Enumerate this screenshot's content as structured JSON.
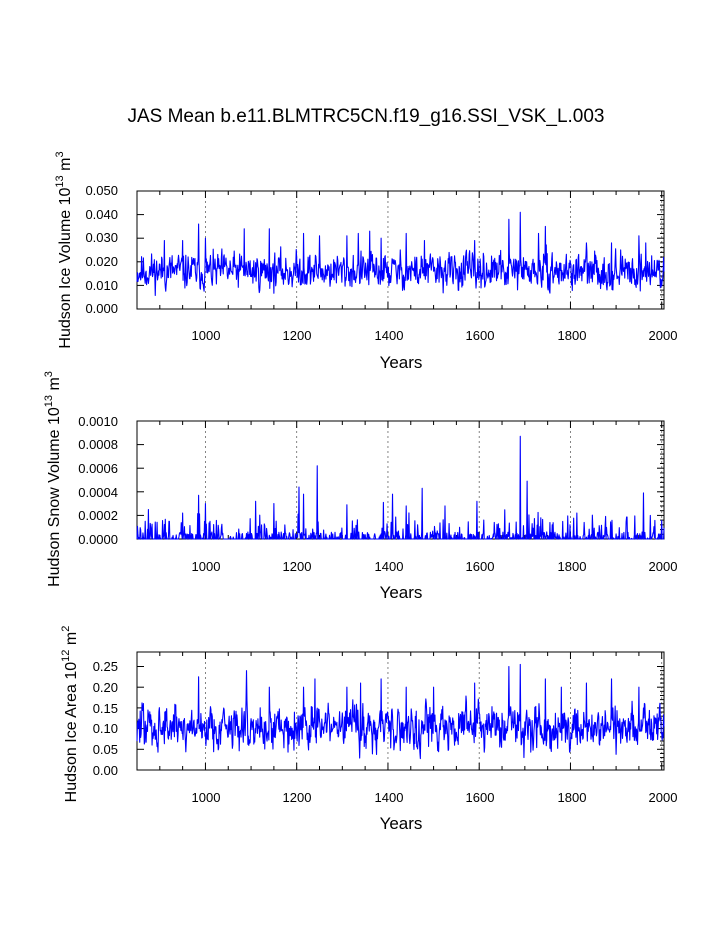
{
  "figure": {
    "title": "JAS Mean b.e11.BLMTRC5CN.f19_g16.SSI_VSK_L.003"
  },
  "chart_data": [
    {
      "type": "line",
      "title": "JAS Mean b.e11.BLMTRC5CN.f19_g16.SSI_VSK_L.003",
      "xlabel": "Years",
      "ylabel_parts": [
        "Hudson Ice Volume 10",
        "13",
        " m",
        "3"
      ],
      "xlim": [
        850,
        2005
      ],
      "ylim": [
        0,
        0.05
      ],
      "xticks": [
        1000,
        1200,
        1400,
        1600,
        1800,
        2000
      ],
      "xtick_labels": [
        "1000",
        "1200",
        "1400",
        "1600",
        "1800",
        "2000"
      ],
      "yticks": [
        0,
        0.01,
        0.02,
        0.03,
        0.04,
        0.05
      ],
      "ytick_labels": [
        "0.000",
        "0.010",
        "0.020",
        "0.030",
        "0.040",
        "0.050"
      ],
      "grid_x": [
        1000,
        1200,
        1400,
        1600,
        1800,
        2000
      ],
      "series": [
        {
          "name": "Hudson Ice Volume",
          "color": "#0000ff",
          "x_start": 850,
          "x_end": 2005,
          "baseline": 0.016,
          "spread": 0.0035,
          "floor": 0.003,
          "peaks": [
            [
              870,
              0.016
            ],
            [
              910,
              0.029
            ],
            [
              950,
              0.029
            ],
            [
              985,
              0.036
            ],
            [
              1000,
              0.03
            ],
            [
              1085,
              0.034
            ],
            [
              1140,
              0.034
            ],
            [
              1215,
              0.032
            ],
            [
              1250,
              0.031
            ],
            [
              1310,
              0.031
            ],
            [
              1335,
              0.032
            ],
            [
              1360,
              0.033
            ],
            [
              1385,
              0.03
            ],
            [
              1440,
              0.032
            ],
            [
              1480,
              0.029
            ],
            [
              1590,
              0.029
            ],
            [
              1665,
              0.038
            ],
            [
              1690,
              0.041
            ],
            [
              1730,
              0.032
            ],
            [
              1745,
              0.035
            ],
            [
              1835,
              0.028
            ],
            [
              1890,
              0.028
            ],
            [
              1950,
              0.031
            ],
            [
              1965,
              0.028
            ]
          ]
        }
      ]
    },
    {
      "type": "line",
      "xlabel": "Years",
      "ylabel_parts": [
        "Hudson Snow Volume 10",
        "13",
        " m",
        "3"
      ],
      "xlim": [
        850,
        2005
      ],
      "ylim": [
        0,
        0.001
      ],
      "xticks": [
        1000,
        1200,
        1400,
        1600,
        1800,
        2000
      ],
      "xtick_labels": [
        "1000",
        "1200",
        "1400",
        "1600",
        "1800",
        "2000"
      ],
      "yticks": [
        0,
        0.0002,
        0.0004,
        0.0006,
        0.0008,
        0.001
      ],
      "ytick_labels": [
        "0.0000",
        "0.0002",
        "0.0004",
        "0.0006",
        "0.0008",
        "0.0010"
      ],
      "grid_x": [
        1000,
        1200,
        1400,
        1600,
        1800,
        2000
      ],
      "series": [
        {
          "name": "Hudson Snow Volume",
          "color": "#0000ff",
          "x_start": 850,
          "x_end": 2005,
          "baseline": 0,
          "spread": 0,
          "peaks": [
            [
              875,
              0.00025
            ],
            [
              920,
              0.00015
            ],
            [
              950,
              0.00022
            ],
            [
              985,
              0.00037
            ],
            [
              1000,
              0.0003
            ],
            [
              1110,
              0.00032
            ],
            [
              1150,
              0.0003
            ],
            [
              1205,
              0.00044
            ],
            [
              1215,
              0.00038
            ],
            [
              1245,
              0.00062
            ],
            [
              1310,
              0.00029
            ],
            [
              1390,
              0.00031
            ],
            [
              1410,
              0.00038
            ],
            [
              1440,
              0.00028
            ],
            [
              1475,
              0.00043
            ],
            [
              1525,
              0.00028
            ],
            [
              1595,
              0.00032
            ],
            [
              1690,
              0.00087
            ],
            [
              1705,
              0.00049
            ],
            [
              1735,
              0.00018
            ],
            [
              1760,
              0.00012
            ],
            [
              1830,
              0.00014
            ],
            [
              1960,
              0.00039
            ],
            [
              1975,
              0.0002
            ]
          ]
        }
      ]
    },
    {
      "type": "line",
      "xlabel": "Years",
      "ylabel_parts": [
        "Hudson Ice Area 10",
        "12",
        " m",
        "2"
      ],
      "xlim": [
        850,
        2005
      ],
      "ylim": [
        0,
        0.285
      ],
      "xticks": [
        1000,
        1200,
        1400,
        1600,
        1800,
        2000
      ],
      "xtick_labels": [
        "1000",
        "1200",
        "1400",
        "1600",
        "1800",
        "2000"
      ],
      "yticks": [
        0,
        0.05,
        0.1,
        0.15,
        0.2,
        0.25
      ],
      "ytick_labels": [
        "0.00",
        "0.05",
        "0.10",
        "0.15",
        "0.20",
        "0.25"
      ],
      "grid_x": [
        1000,
        1200,
        1400,
        1600,
        1800,
        2000
      ],
      "series": [
        {
          "name": "Hudson Ice Area",
          "color": "#0000ff",
          "x_start": 850,
          "x_end": 2005,
          "baseline": 0.105,
          "spread": 0.025,
          "floor": 0.02,
          "peaks": [
            [
              985,
              0.225
            ],
            [
              1090,
              0.24
            ],
            [
              1140,
              0.2
            ],
            [
              1215,
              0.2
            ],
            [
              1240,
              0.22
            ],
            [
              1310,
              0.2
            ],
            [
              1340,
              0.21
            ],
            [
              1385,
              0.22
            ],
            [
              1440,
              0.2
            ],
            [
              1500,
              0.2
            ],
            [
              1590,
              0.21
            ],
            [
              1665,
              0.25
            ],
            [
              1690,
              0.255
            ],
            [
              1745,
              0.22
            ],
            [
              1780,
              0.2
            ],
            [
              1835,
              0.21
            ],
            [
              1890,
              0.22
            ],
            [
              1950,
              0.2
            ]
          ]
        }
      ]
    }
  ]
}
